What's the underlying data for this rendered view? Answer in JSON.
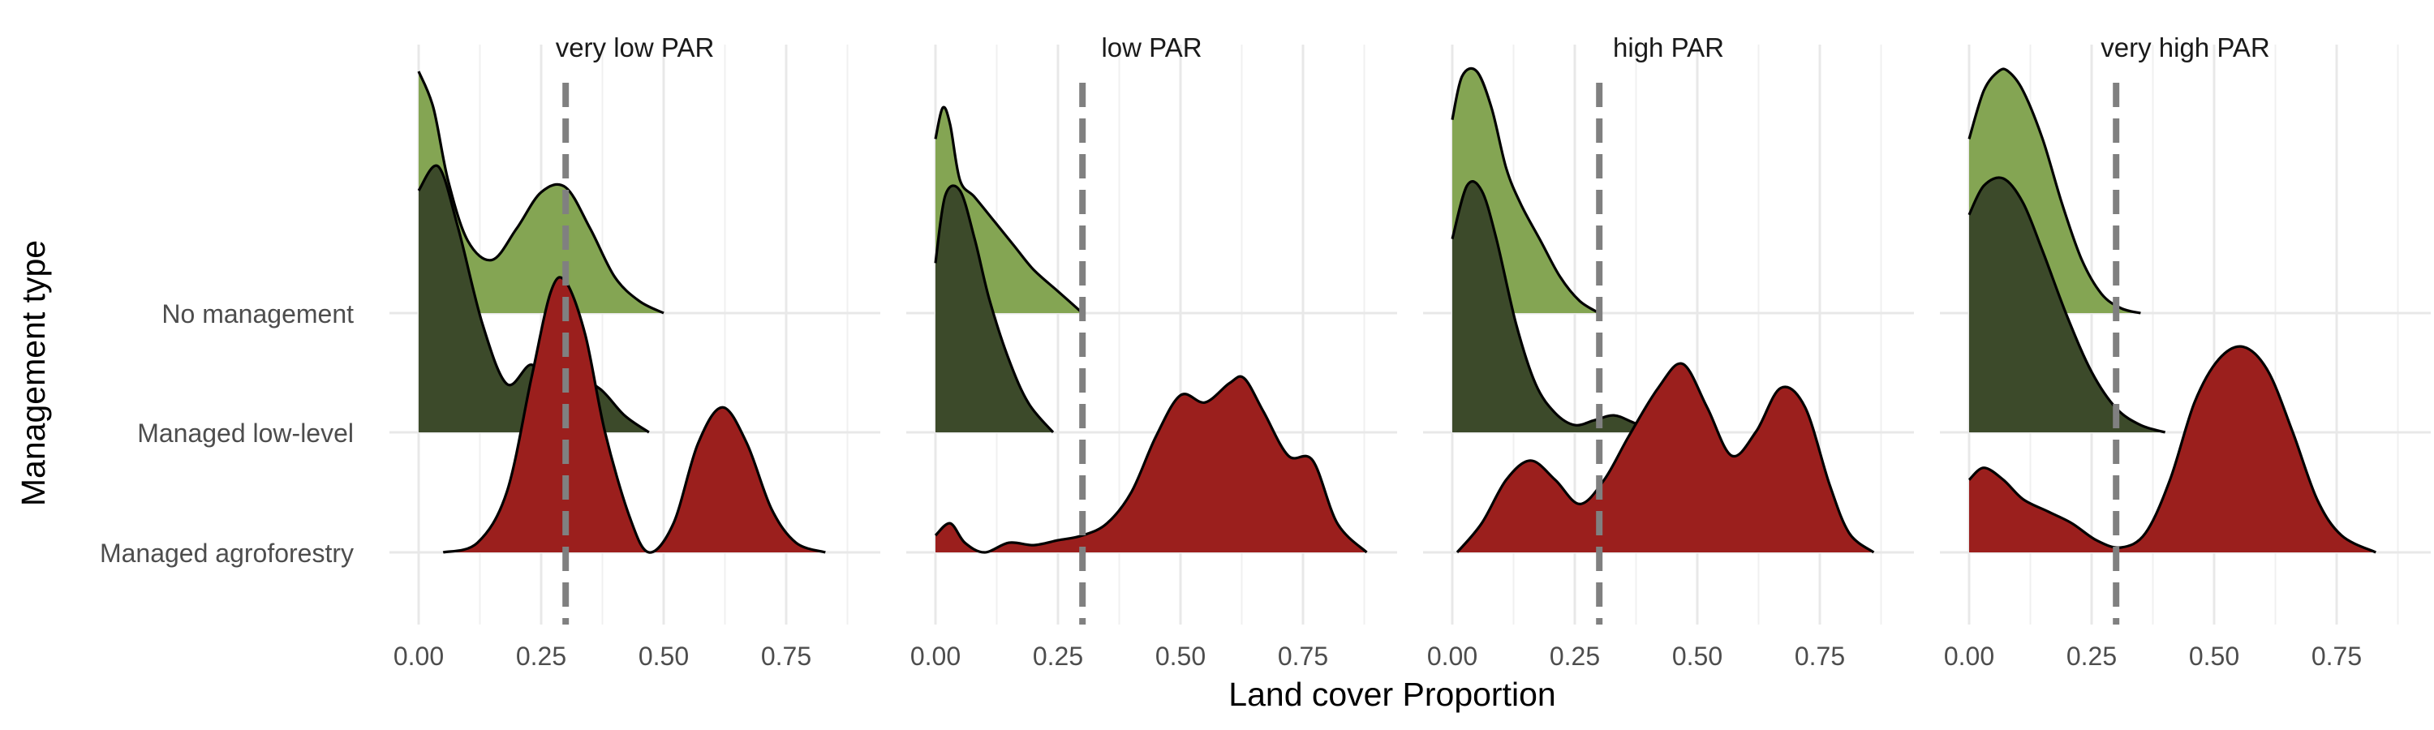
{
  "chart_data": {
    "type": "area",
    "subtype": "ridgeline-density",
    "xlabel": "Land cover Proportion",
    "ylabel": "Management type",
    "xlim": [
      0,
      0.85
    ],
    "x_ticks": [
      "0.00",
      "0.25",
      "0.50",
      "0.75"
    ],
    "x_tick_values": [
      0,
      0.25,
      0.5,
      0.75
    ],
    "categories": [
      "No management",
      "Managed low-level",
      "Managed agroforestry"
    ],
    "reference_line": {
      "x": 0.3,
      "style": "dashed",
      "color": "#808080"
    },
    "grid": true,
    "legend": "none",
    "colors": {
      "No management": "#84A553",
      "Managed low-level": "#3C4A2A",
      "Managed agroforestry": "#9B1F1D"
    },
    "panels": [
      {
        "title": "very low PAR",
        "series": [
          {
            "category": "No management",
            "x": [
              0,
              0.03,
              0.06,
              0.1,
              0.15,
              0.2,
              0.25,
              0.3,
              0.35,
              0.4,
              0.45,
              0.5
            ],
            "density": [
              1.0,
              0.85,
              0.55,
              0.3,
              0.22,
              0.35,
              0.5,
              0.52,
              0.35,
              0.15,
              0.05,
              0.0
            ]
          },
          {
            "category": "Managed low-level",
            "x": [
              0,
              0.04,
              0.08,
              0.13,
              0.18,
              0.23,
              0.27,
              0.32,
              0.37,
              0.42,
              0.47
            ],
            "density": [
              1.0,
              1.1,
              0.85,
              0.45,
              0.2,
              0.28,
              0.18,
              0.22,
              0.18,
              0.07,
              0.0
            ]
          },
          {
            "category": "Managed agroforestry",
            "x": [
              0.05,
              0.12,
              0.18,
              0.23,
              0.27,
              0.3,
              0.34,
              0.38,
              0.43,
              0.47,
              0.52,
              0.57,
              0.62,
              0.67,
              0.72,
              0.77,
              0.83
            ],
            "density": [
              0.0,
              0.04,
              0.25,
              0.72,
              1.08,
              1.12,
              0.9,
              0.5,
              0.15,
              0.0,
              0.12,
              0.45,
              0.6,
              0.45,
              0.18,
              0.04,
              0.0
            ]
          }
        ]
      },
      {
        "title": "low PAR",
        "series": [
          {
            "category": "No management",
            "x": [
              0,
              0.015,
              0.03,
              0.05,
              0.08,
              0.12,
              0.16,
              0.2,
              0.25,
              0.3
            ],
            "density": [
              0.72,
              0.85,
              0.78,
              0.55,
              0.48,
              0.38,
              0.28,
              0.18,
              0.09,
              0.0
            ]
          },
          {
            "category": "Managed low-level",
            "x": [
              0,
              0.02,
              0.05,
              0.08,
              0.11,
              0.15,
              0.19,
              0.24
            ],
            "density": [
              0.7,
              0.98,
              1.0,
              0.8,
              0.55,
              0.3,
              0.12,
              0.0
            ]
          },
          {
            "category": "Managed agroforestry",
            "x": [
              0,
              0.03,
              0.06,
              0.1,
              0.15,
              0.2,
              0.25,
              0.3,
              0.35,
              0.4,
              0.45,
              0.5,
              0.55,
              0.6,
              0.63,
              0.67,
              0.72,
              0.77,
              0.82,
              0.88
            ],
            "density": [
              0.07,
              0.12,
              0.04,
              0.0,
              0.04,
              0.03,
              0.05,
              0.07,
              0.12,
              0.25,
              0.48,
              0.65,
              0.62,
              0.7,
              0.72,
              0.58,
              0.4,
              0.38,
              0.12,
              0.0
            ]
          }
        ]
      },
      {
        "title": "high PAR",
        "series": [
          {
            "category": "No management",
            "x": [
              0,
              0.02,
              0.05,
              0.08,
              0.11,
              0.14,
              0.18,
              0.22,
              0.26,
              0.3
            ],
            "density": [
              0.8,
              0.98,
              1.0,
              0.85,
              0.6,
              0.45,
              0.3,
              0.15,
              0.05,
              0.0
            ]
          },
          {
            "category": "Managed low-level",
            "x": [
              0,
              0.03,
              0.06,
              0.09,
              0.13,
              0.17,
              0.21,
              0.25,
              0.29,
              0.33,
              0.37,
              0.42
            ],
            "density": [
              0.8,
              1.02,
              1.0,
              0.8,
              0.45,
              0.2,
              0.08,
              0.03,
              0.05,
              0.07,
              0.04,
              0.0
            ]
          },
          {
            "category": "Managed agroforestry",
            "x": [
              0.01,
              0.06,
              0.11,
              0.16,
              0.21,
              0.26,
              0.31,
              0.36,
              0.42,
              0.47,
              0.52,
              0.57,
              0.62,
              0.67,
              0.72,
              0.77,
              0.81,
              0.86
            ],
            "density": [
              0.0,
              0.12,
              0.3,
              0.38,
              0.3,
              0.2,
              0.3,
              0.48,
              0.68,
              0.78,
              0.6,
              0.4,
              0.5,
              0.68,
              0.6,
              0.28,
              0.08,
              0.0
            ]
          }
        ]
      },
      {
        "title": "very high PAR",
        "series": [
          {
            "category": "No management",
            "x": [
              0,
              0.03,
              0.06,
              0.08,
              0.11,
              0.15,
              0.19,
              0.23,
              0.27,
              0.31,
              0.35
            ],
            "density": [
              0.72,
              0.92,
              1.0,
              1.0,
              0.92,
              0.72,
              0.45,
              0.22,
              0.08,
              0.02,
              0.0
            ]
          },
          {
            "category": "Managed low-level",
            "x": [
              0,
              0.03,
              0.07,
              0.11,
              0.15,
              0.2,
              0.25,
              0.3,
              0.35,
              0.4
            ],
            "density": [
              0.9,
              1.02,
              1.05,
              0.95,
              0.75,
              0.48,
              0.25,
              0.1,
              0.03,
              0.0
            ]
          },
          {
            "category": "Managed agroforestry",
            "x": [
              0,
              0.03,
              0.07,
              0.11,
              0.16,
              0.21,
              0.26,
              0.31,
              0.36,
              0.41,
              0.46,
              0.51,
              0.56,
              0.61,
              0.66,
              0.71,
              0.76,
              0.83
            ],
            "density": [
              0.3,
              0.35,
              0.3,
              0.22,
              0.17,
              0.12,
              0.05,
              0.02,
              0.08,
              0.3,
              0.62,
              0.8,
              0.85,
              0.75,
              0.5,
              0.22,
              0.07,
              0.0
            ]
          }
        ]
      }
    ]
  }
}
